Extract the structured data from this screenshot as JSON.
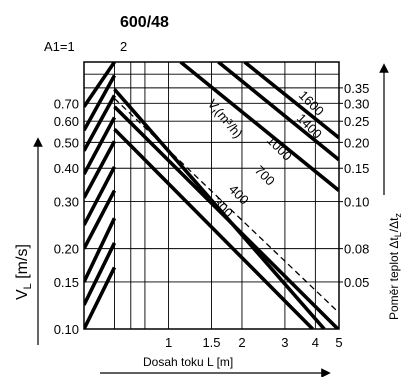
{
  "chart_data": {
    "type": "line",
    "title": "600/48",
    "a_labels": [
      "A1=1",
      "2"
    ],
    "xlabel": "Dosah toku L [m]",
    "ylabel": "V",
    "ylabel_sub": "L",
    "ylabel_unit": " [m/s]",
    "y2label": "Poměr teplot Δt",
    "y2label_sub1": "L",
    "y2label_mid": "/Δt",
    "y2label_sub2": "z",
    "x_ticks": [
      "1",
      "1.5",
      "2",
      "3",
      "4",
      "5"
    ],
    "x_tick_values": [
      1,
      1.5,
      2,
      3,
      4,
      5
    ],
    "xlim": [
      0.45,
      5
    ],
    "y_ticks": [
      "0.10",
      "0.15",
      "0.20",
      "0.30",
      "0.40",
      "0.50",
      "0.60",
      "0.70"
    ],
    "y_tick_values": [
      0.1,
      0.15,
      0.2,
      0.3,
      0.4,
      0.5,
      0.6,
      0.7
    ],
    "ylim": [
      0.1,
      1.0
    ],
    "y2_ticks": [
      "0.05",
      "0.08",
      "0.10",
      "0.15",
      "0.20",
      "0.25",
      "0.30",
      "0.35"
    ],
    "y2_tick_values": [
      0.05,
      0.08,
      0.1,
      0.15,
      0.2,
      0.25,
      0.3,
      0.35
    ],
    "flow_unit_label": "V",
    "flow_unit_sub": "t",
    "flow_unit_rest": "(m³/h)",
    "flow_series": [
      {
        "name": "1600",
        "x": [
          2.05,
          5.0
        ],
        "y": [
          1.0,
          0.52
        ]
      },
      {
        "name": "1400",
        "x": [
          1.6,
          5.0
        ],
        "y": [
          1.0,
          0.43
        ]
      },
      {
        "name": "1000",
        "x": [
          1.12,
          5.0
        ],
        "y": [
          1.0,
          0.33
        ]
      },
      {
        "name": "700",
        "x": [
          0.6,
          4.35
        ],
        "y": [
          0.79,
          0.1
        ]
      },
      {
        "name": "400",
        "x": [
          0.6,
          4.95
        ],
        "y": [
          0.68,
          0.1
        ]
      },
      {
        "name": "300",
        "x": [
          0.6,
          3.9
        ],
        "y": [
          0.56,
          0.1
        ]
      }
    ],
    "ratio_line": {
      "x": [
        0.6,
        5.0
      ],
      "y": [
        0.73,
        0.115
      ]
    },
    "left_segments": [
      {
        "y": [
          0.1,
          0.17
        ]
      },
      {
        "y": [
          0.123,
          0.21
        ]
      },
      {
        "y": [
          0.15,
          0.26
        ]
      },
      {
        "y": [
          0.2,
          0.33
        ]
      },
      {
        "y": [
          0.245,
          0.405
        ]
      },
      {
        "y": [
          0.31,
          0.505
        ]
      },
      {
        "y": [
          0.38,
          0.62
        ]
      },
      {
        "y": [
          0.465,
          0.75
        ]
      },
      {
        "y": [
          0.555,
          0.89
        ]
      },
      {
        "y": [
          0.68,
          1.0
        ]
      }
    ]
  }
}
